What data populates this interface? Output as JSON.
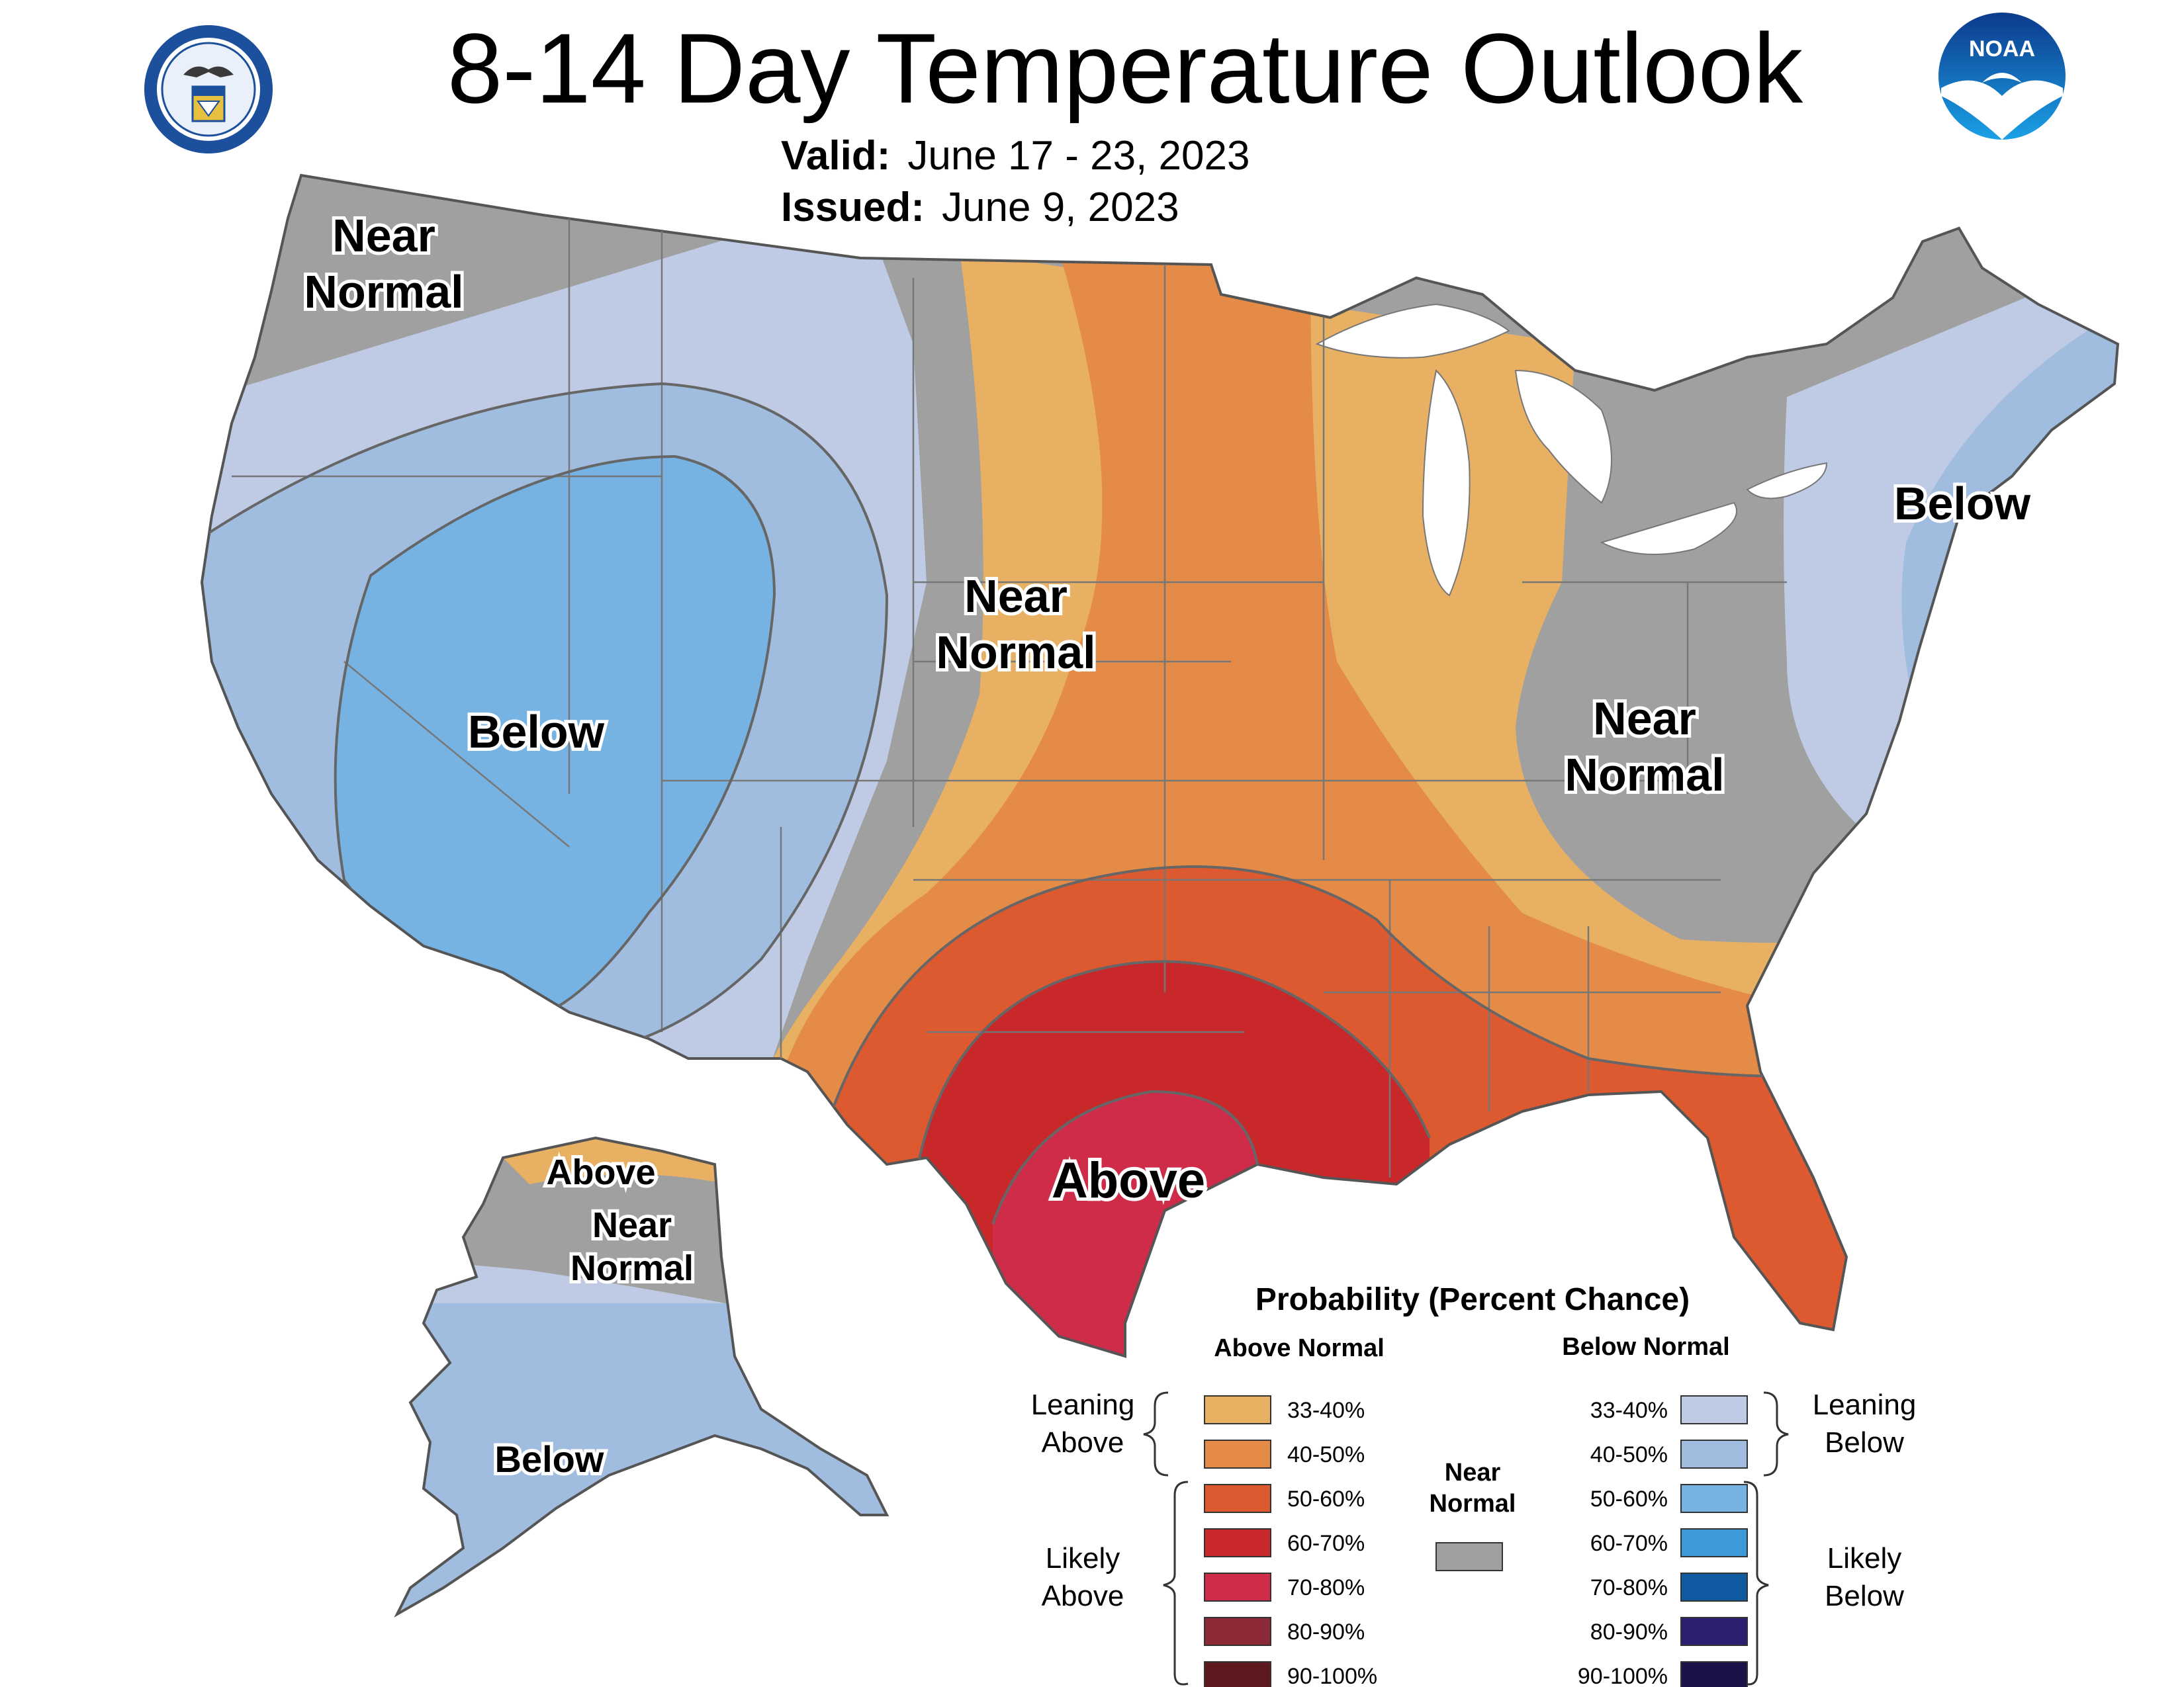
{
  "header": {
    "title": "8-14 Day Temperature Outlook",
    "valid_label": "Valid:",
    "valid_value": "June 17 - 23, 2023",
    "issued_label": "Issued:",
    "issued_value": "June 9, 2023"
  },
  "logos": {
    "commerce_seal": "department-of-commerce-seal",
    "noaa_logo": "noaa-logo",
    "noaa_text": "NOAA"
  },
  "colors": {
    "above_33_40": "#e8b062",
    "above_40_50": "#e58b48",
    "above_50_60": "#dd5a30",
    "above_60_70": "#c8282a",
    "above_70_80": "#cf2c4a",
    "above_80_90": "#8b2a36",
    "above_90_100": "#5c1a1e",
    "near_normal": "#a0a0a0",
    "below_33_40": "#bfcbe4",
    "below_40_50": "#a0bde0",
    "below_50_60": "#76b2e2",
    "below_60_70": "#3d9ad8",
    "below_70_80": "#0f5aa0",
    "below_80_90": "#2c1e70",
    "below_90_100": "#1a1248",
    "boundary": "#555555",
    "state_line": "#777777",
    "water": "#ffffff"
  },
  "map_labels": {
    "pacific_nw_near_normal_1": "Near",
    "pacific_nw_near_normal_2": "Normal",
    "west_below": "Below",
    "plains_near_normal_1": "Near",
    "plains_near_normal_2": "Normal",
    "east_near_normal_1": "Near",
    "east_near_normal_2": "Normal",
    "northeast_below": "Below",
    "south_above": "Above",
    "alaska_above": "Above",
    "alaska_near_normal_1": "Near",
    "alaska_near_normal_2": "Normal",
    "alaska_below": "Below"
  },
  "legend": {
    "title": "Probability (Percent Chance)",
    "above_header": "Above Normal",
    "below_header": "Below Normal",
    "near_header_1": "Near",
    "near_header_2": "Normal",
    "leaning_above_1": "Leaning",
    "leaning_above_2": "Above",
    "likely_above_1": "Likely",
    "likely_above_2": "Above",
    "leaning_below_1": "Leaning",
    "leaning_below_2": "Below",
    "likely_below_1": "Likely",
    "likely_below_2": "Below",
    "above": [
      {
        "label": "33-40%",
        "color": "#e8b062"
      },
      {
        "label": "40-50%",
        "color": "#e58b48"
      },
      {
        "label": "50-60%",
        "color": "#dd5a30"
      },
      {
        "label": "60-70%",
        "color": "#c8282a"
      },
      {
        "label": "70-80%",
        "color": "#cf2c4a"
      },
      {
        "label": "80-90%",
        "color": "#8b2a36"
      },
      {
        "label": "90-100%",
        "color": "#5c1a1e"
      }
    ],
    "below": [
      {
        "label": "33-40%",
        "color": "#bfcbe4"
      },
      {
        "label": "40-50%",
        "color": "#a0bde0"
      },
      {
        "label": "50-60%",
        "color": "#76b2e2"
      },
      {
        "label": "60-70%",
        "color": "#3d9ad8"
      },
      {
        "label": "70-80%",
        "color": "#0f5aa0"
      },
      {
        "label": "80-90%",
        "color": "#2c1e70"
      },
      {
        "label": "90-100%",
        "color": "#1a1248"
      }
    ],
    "near_color": "#a0a0a0"
  }
}
